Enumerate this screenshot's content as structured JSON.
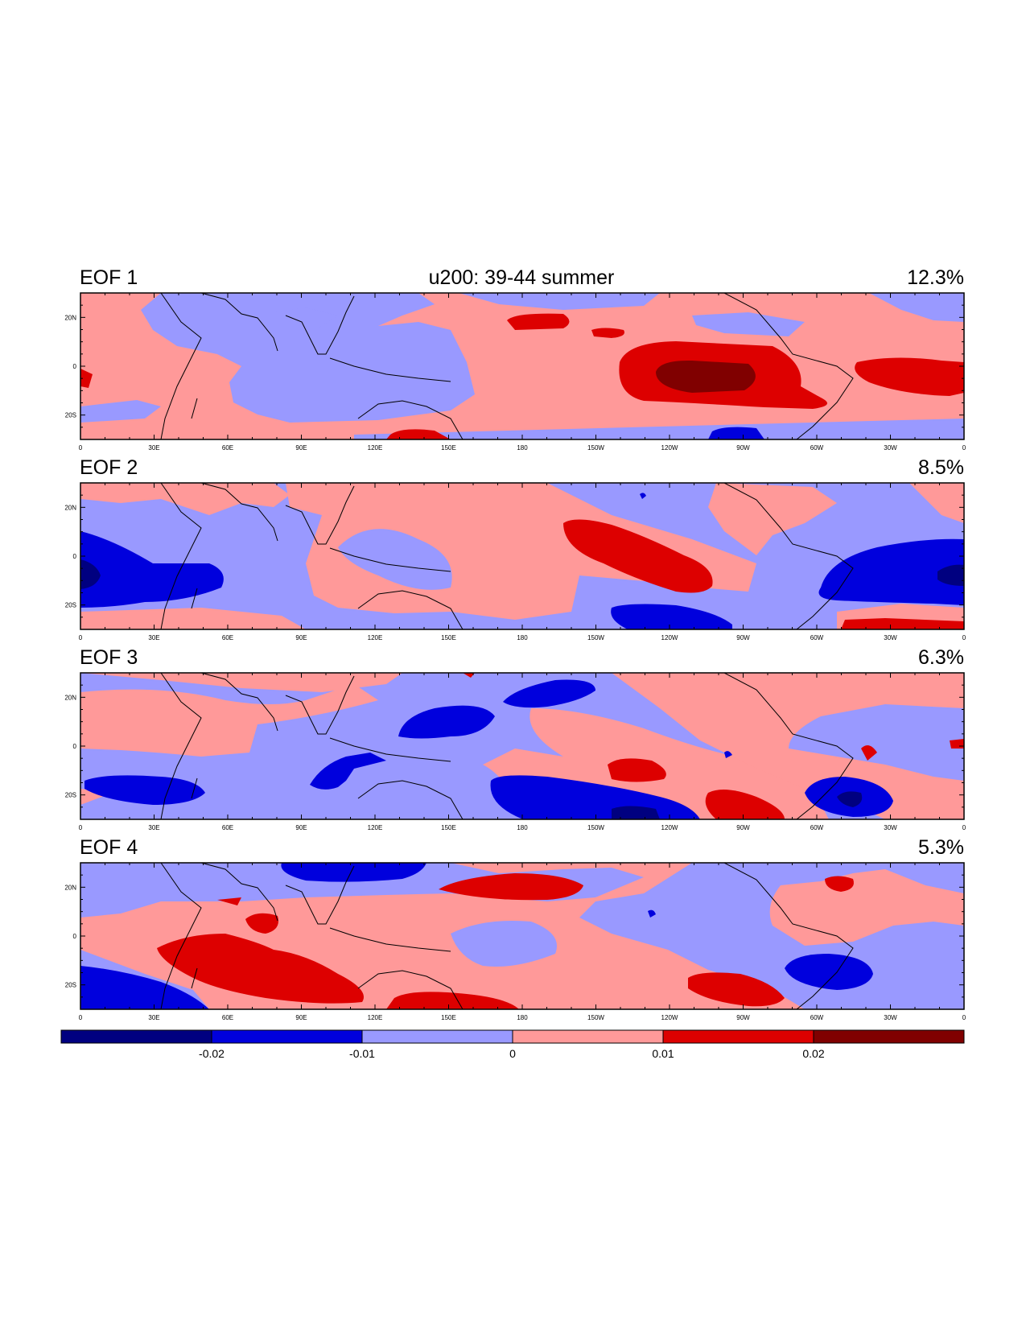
{
  "figure_title": "u200: 39-44 summer",
  "colors": {
    "neg3": "#000080",
    "neg2": "#0000dd",
    "neg1": "#9999ff",
    "pos1": "#ff9999",
    "pos2": "#dd0000",
    "pos3": "#800000",
    "coast": "#000000"
  },
  "chart_data": {
    "type": "heatmap",
    "variable": "u200",
    "period": "39-44 summer",
    "lon_range": [
      0,
      360
    ],
    "lat_range": [
      -30,
      30
    ],
    "xticks": [
      "0",
      "30E",
      "60E",
      "90E",
      "120E",
      "150E",
      "180",
      "150W",
      "120W",
      "90W",
      "60W",
      "30W",
      "0"
    ],
    "yticks": [
      "20N",
      "0",
      "20S"
    ],
    "contour_levels": [
      -0.02,
      -0.01,
      0,
      0.01,
      0.02
    ],
    "colorbar_labels": [
      "-0.02",
      "-0.01",
      "0",
      "0.01",
      "0.02"
    ],
    "panels": [
      {
        "label": "EOF 1",
        "variance": "12.3%",
        "features": [
          {
            "lon": 250,
            "lat": -5,
            "value": 0.025
          },
          {
            "lon": 330,
            "lat": -5,
            "value": 0.015
          },
          {
            "lon": 195,
            "lat": 17,
            "value": 0.012
          },
          {
            "lon": 112,
            "lat": 5,
            "value": -0.005
          },
          {
            "lon": 255,
            "lat": -27,
            "value": -0.012
          }
        ]
      },
      {
        "label": "EOF 2",
        "variance": "8.5%",
        "features": [
          {
            "lon": 5,
            "lat": -9,
            "value": -0.025
          },
          {
            "lon": 45,
            "lat": -10,
            "value": -0.015
          },
          {
            "lon": 345,
            "lat": -8,
            "value": -0.02
          },
          {
            "lon": 235,
            "lat": -5,
            "value": 0.015
          },
          {
            "lon": 235,
            "lat": -25,
            "value": -0.012
          }
        ]
      },
      {
        "label": "EOF 3",
        "variance": "6.3%",
        "features": [
          {
            "lon": 30,
            "lat": -20,
            "value": -0.015
          },
          {
            "lon": 155,
            "lat": 8,
            "value": -0.015
          },
          {
            "lon": 205,
            "lat": 22,
            "value": -0.012
          },
          {
            "lon": 105,
            "lat": -10,
            "value": -0.012
          },
          {
            "lon": 215,
            "lat": -22,
            "value": -0.015
          },
          {
            "lon": 305,
            "lat": -20,
            "value": -0.02
          },
          {
            "lon": 248,
            "lat": -10,
            "value": 0.012
          },
          {
            "lon": 270,
            "lat": -22,
            "value": 0.012
          }
        ]
      },
      {
        "label": "EOF 4",
        "variance": "5.3%",
        "features": [
          {
            "lon": 90,
            "lat": -15,
            "value": 0.015
          },
          {
            "lon": 190,
            "lat": 18,
            "value": 0.015
          },
          {
            "lon": 105,
            "lat": 25,
            "value": -0.012
          },
          {
            "lon": 30,
            "lat": -22,
            "value": -0.015
          },
          {
            "lon": 305,
            "lat": -18,
            "value": -0.015
          },
          {
            "lon": 265,
            "lat": -22,
            "value": 0.012
          }
        ]
      }
    ]
  }
}
